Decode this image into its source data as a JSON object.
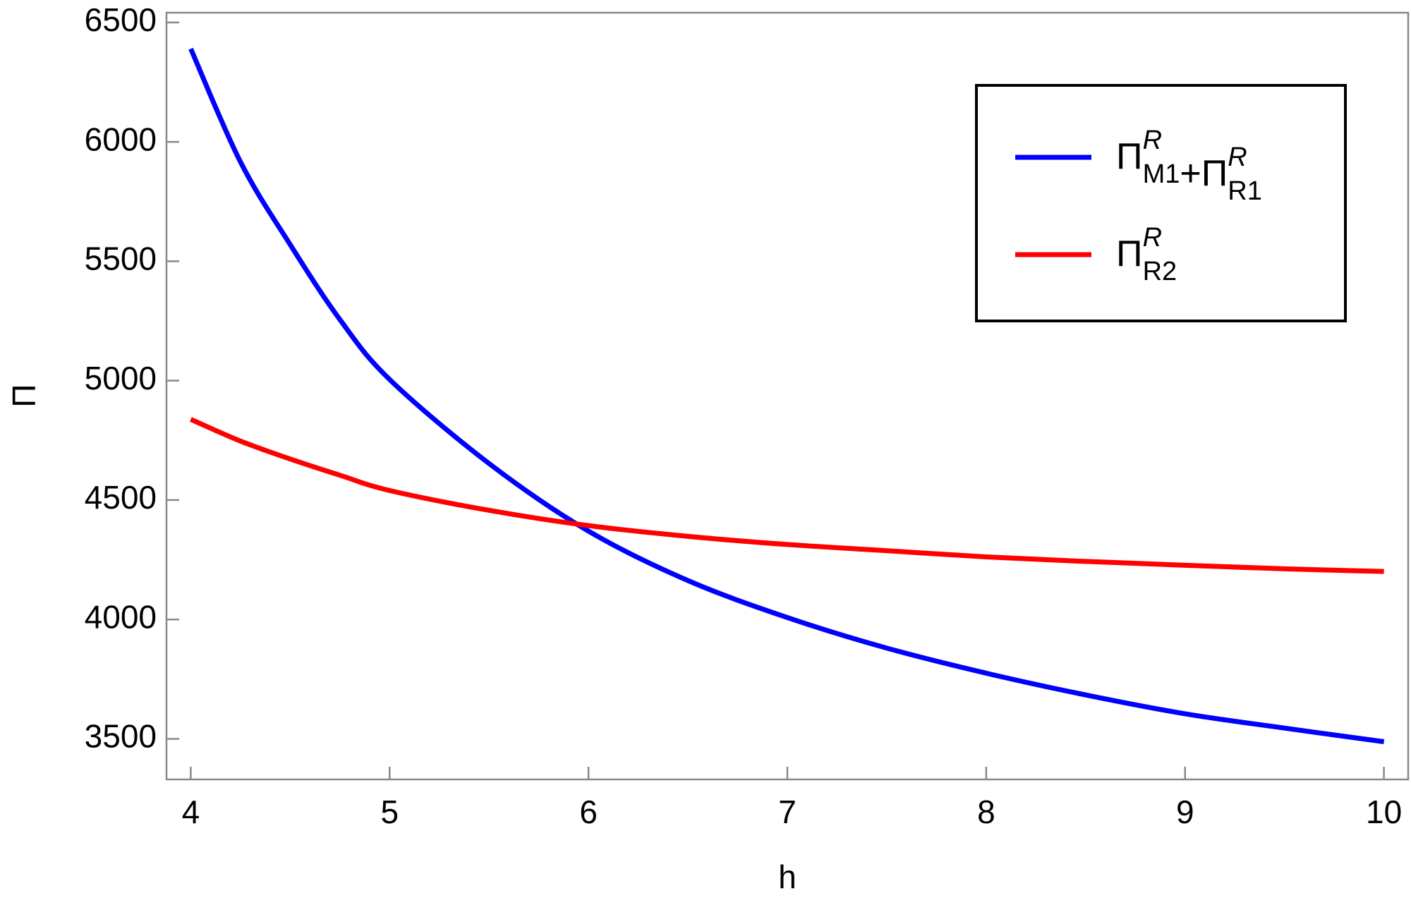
{
  "chart_data": {
    "type": "line",
    "xlabel": "h",
    "ylabel": "Π",
    "x": [
      4,
      4.25,
      4.5,
      4.75,
      5,
      5.5,
      6,
      6.5,
      7,
      7.5,
      8,
      8.5,
      9,
      9.5,
      10
    ],
    "series": [
      {
        "name": [
          {
            "base": "Π",
            "sup": "R",
            "sub": "M1"
          },
          {
            "base": "+"
          },
          {
            "base": "Π",
            "sup": "R",
            "sub": "R1"
          }
        ],
        "color": "#0000ff",
        "values": [
          6390,
          5916,
          5570,
          5256,
          5005,
          4653,
          4370,
          4163,
          4008,
          3880,
          3775,
          3684,
          3605,
          3545,
          3488
        ]
      },
      {
        "name": [
          {
            "base": "Π",
            "sup": "R",
            "sub": "R2"
          }
        ],
        "color": "#ff0000",
        "values": [
          4838,
          4747,
          4672,
          4604,
          4540,
          4457,
          4393,
          4348,
          4314,
          4288,
          4262,
          4243,
          4227,
          4212,
          4201
        ]
      }
    ],
    "xlim": [
      3.878,
      10.122
    ],
    "ylim": [
      3330,
      6541
    ],
    "xticks": [
      4,
      5,
      6,
      7,
      8,
      9,
      10
    ],
    "yticks": [
      3500,
      4000,
      4500,
      5000,
      5500,
      6000,
      6500
    ],
    "legend": "upper right"
  }
}
